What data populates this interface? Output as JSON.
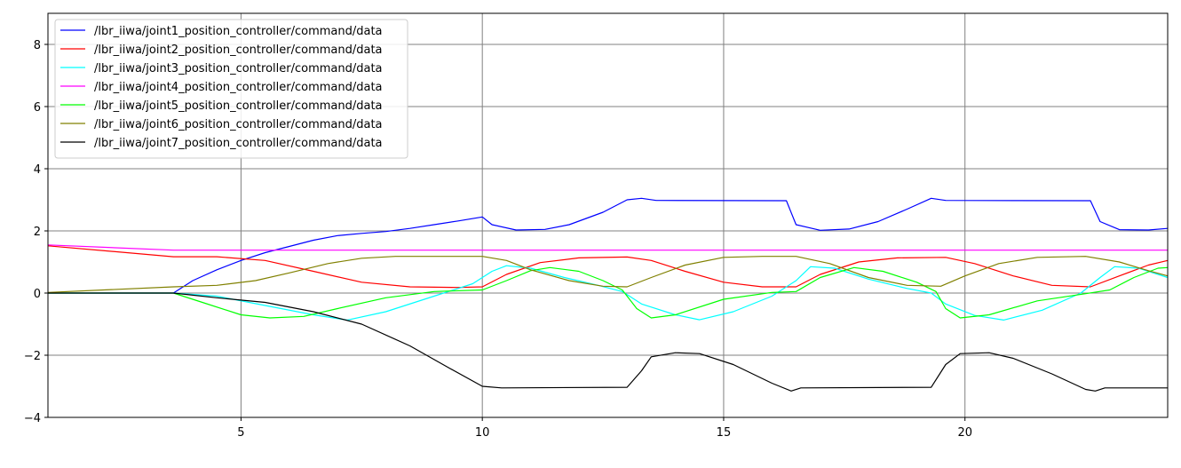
{
  "chart_data": {
    "type": "line",
    "title": "",
    "xlabel": "",
    "ylabel": "",
    "xlim": [
      1,
      24.2
    ],
    "ylim": [
      -4,
      9
    ],
    "xticks": [
      5,
      10,
      15,
      20
    ],
    "yticks": [
      -4,
      -2,
      0,
      2,
      4,
      6,
      8
    ],
    "grid": true,
    "legend_position": "top-left",
    "series": [
      {
        "name": "/lbr_iiwa/joint1_position_controller/command/data",
        "color": "#0000ff",
        "points": [
          [
            1,
            0
          ],
          [
            3.6,
            0
          ],
          [
            4,
            0.4
          ],
          [
            4.5,
            0.75
          ],
          [
            5,
            1.05
          ],
          [
            5.5,
            1.3
          ],
          [
            6,
            1.5
          ],
          [
            6.5,
            1.7
          ],
          [
            7,
            1.85
          ],
          [
            7.5,
            1.92
          ],
          [
            8,
            1.98
          ],
          [
            8.5,
            2.08
          ],
          [
            9,
            2.2
          ],
          [
            9.5,
            2.32
          ],
          [
            10,
            2.45
          ],
          [
            10.2,
            2.2
          ],
          [
            10.7,
            2.03
          ],
          [
            11.3,
            2.05
          ],
          [
            11.8,
            2.2
          ],
          [
            12.5,
            2.6
          ],
          [
            13,
            3.0
          ],
          [
            13.3,
            3.05
          ],
          [
            13.6,
            2.98
          ],
          [
            16.3,
            2.97
          ],
          [
            16.5,
            2.2
          ],
          [
            17,
            2.02
          ],
          [
            17.6,
            2.06
          ],
          [
            18.2,
            2.3
          ],
          [
            18.8,
            2.7
          ],
          [
            19.3,
            3.05
          ],
          [
            19.6,
            2.98
          ],
          [
            22.6,
            2.97
          ],
          [
            22.8,
            2.3
          ],
          [
            23.2,
            2.04
          ],
          [
            23.8,
            2.03
          ],
          [
            24.2,
            2.08
          ]
        ]
      },
      {
        "name": "/lbr_iiwa/joint2_position_controller/command/data",
        "color": "#ff0000",
        "points": [
          [
            1,
            1.52
          ],
          [
            3.6,
            1.17
          ],
          [
            4.5,
            1.17
          ],
          [
            5.5,
            1.05
          ],
          [
            6.5,
            0.7
          ],
          [
            7.5,
            0.35
          ],
          [
            8.5,
            0.2
          ],
          [
            9.5,
            0.18
          ],
          [
            10,
            0.2
          ],
          [
            10.5,
            0.6
          ],
          [
            11.2,
            0.98
          ],
          [
            12,
            1.13
          ],
          [
            13,
            1.16
          ],
          [
            13.5,
            1.05
          ],
          [
            14.2,
            0.7
          ],
          [
            15,
            0.35
          ],
          [
            15.8,
            0.2
          ],
          [
            16.5,
            0.2
          ],
          [
            17,
            0.6
          ],
          [
            17.8,
            1.0
          ],
          [
            18.6,
            1.13
          ],
          [
            19.6,
            1.15
          ],
          [
            20.2,
            0.95
          ],
          [
            21,
            0.55
          ],
          [
            21.8,
            0.25
          ],
          [
            22.6,
            0.2
          ],
          [
            23.2,
            0.55
          ],
          [
            23.8,
            0.9
          ],
          [
            24.2,
            1.05
          ]
        ]
      },
      {
        "name": "/lbr_iiwa/joint3_position_controller/command/data",
        "color": "#00ffff",
        "points": [
          [
            1,
            0
          ],
          [
            3.6,
            0
          ],
          [
            4.5,
            -0.1
          ],
          [
            5.5,
            -0.4
          ],
          [
            6.5,
            -0.7
          ],
          [
            7.2,
            -0.87
          ],
          [
            8,
            -0.6
          ],
          [
            9,
            -0.1
          ],
          [
            9.8,
            0.3
          ],
          [
            10.2,
            0.7
          ],
          [
            10.5,
            0.88
          ],
          [
            11,
            0.8
          ],
          [
            11.7,
            0.5
          ],
          [
            12.4,
            0.25
          ],
          [
            12.9,
            0.05
          ],
          [
            13.3,
            -0.35
          ],
          [
            14,
            -0.7
          ],
          [
            14.5,
            -0.86
          ],
          [
            15.2,
            -0.6
          ],
          [
            16,
            -0.1
          ],
          [
            16.5,
            0.4
          ],
          [
            16.8,
            0.85
          ],
          [
            17.3,
            0.8
          ],
          [
            18,
            0.45
          ],
          [
            18.8,
            0.15
          ],
          [
            19.3,
            0.0
          ],
          [
            19.6,
            -0.35
          ],
          [
            20.2,
            -0.72
          ],
          [
            20.8,
            -0.87
          ],
          [
            21.6,
            -0.55
          ],
          [
            22.4,
            0.0
          ],
          [
            22.8,
            0.5
          ],
          [
            23.1,
            0.85
          ],
          [
            23.6,
            0.8
          ],
          [
            24.2,
            0.5
          ]
        ]
      },
      {
        "name": "/lbr_iiwa/joint4_position_controller/command/data",
        "color": "#ff00ff",
        "points": [
          [
            1,
            1.55
          ],
          [
            3.6,
            1.38
          ],
          [
            24.2,
            1.38
          ]
        ]
      },
      {
        "name": "/lbr_iiwa/joint5_position_controller/command/data",
        "color": "#00ff00",
        "points": [
          [
            1,
            0
          ],
          [
            3.6,
            0
          ],
          [
            4.2,
            -0.3
          ],
          [
            5,
            -0.7
          ],
          [
            5.6,
            -0.8
          ],
          [
            6.3,
            -0.75
          ],
          [
            7,
            -0.5
          ],
          [
            8,
            -0.15
          ],
          [
            9,
            0.05
          ],
          [
            10,
            0.1
          ],
          [
            10.5,
            0.4
          ],
          [
            11,
            0.72
          ],
          [
            11.4,
            0.82
          ],
          [
            12,
            0.7
          ],
          [
            12.5,
            0.4
          ],
          [
            12.9,
            0.1
          ],
          [
            13.2,
            -0.5
          ],
          [
            13.5,
            -0.8
          ],
          [
            14,
            -0.7
          ],
          [
            15,
            -0.2
          ],
          [
            16,
            0.02
          ],
          [
            16.5,
            0.05
          ],
          [
            17,
            0.5
          ],
          [
            17.7,
            0.82
          ],
          [
            18.3,
            0.7
          ],
          [
            19,
            0.35
          ],
          [
            19.4,
            0.05
          ],
          [
            19.6,
            -0.5
          ],
          [
            19.9,
            -0.8
          ],
          [
            20.5,
            -0.7
          ],
          [
            21.5,
            -0.25
          ],
          [
            22.5,
            -0.02
          ],
          [
            23,
            0.1
          ],
          [
            23.5,
            0.5
          ],
          [
            24,
            0.8
          ],
          [
            24.2,
            0.82
          ]
        ]
      },
      {
        "name": "/lbr_iiwa/joint6_position_controller/command/data",
        "color": "#808000",
        "points": [
          [
            1,
            0.02
          ],
          [
            3.6,
            0.2
          ],
          [
            4.5,
            0.25
          ],
          [
            5.3,
            0.4
          ],
          [
            6,
            0.65
          ],
          [
            6.8,
            0.95
          ],
          [
            7.5,
            1.12
          ],
          [
            8.2,
            1.18
          ],
          [
            10,
            1.18
          ],
          [
            10.5,
            1.05
          ],
          [
            11,
            0.75
          ],
          [
            11.8,
            0.4
          ],
          [
            12.5,
            0.22
          ],
          [
            13,
            0.2
          ],
          [
            13.5,
            0.5
          ],
          [
            14.2,
            0.9
          ],
          [
            15,
            1.15
          ],
          [
            15.8,
            1.18
          ],
          [
            16.5,
            1.18
          ],
          [
            17.2,
            0.95
          ],
          [
            18,
            0.5
          ],
          [
            18.8,
            0.25
          ],
          [
            19.5,
            0.22
          ],
          [
            20,
            0.55
          ],
          [
            20.7,
            0.95
          ],
          [
            21.5,
            1.15
          ],
          [
            22.5,
            1.18
          ],
          [
            23.2,
            1.0
          ],
          [
            23.8,
            0.72
          ],
          [
            24.2,
            0.55
          ]
        ]
      },
      {
        "name": "/lbr_iiwa/joint7_position_controller/command/data",
        "color": "#000000",
        "points": [
          [
            1,
            0
          ],
          [
            3.6,
            0
          ],
          [
            4.5,
            -0.15
          ],
          [
            5.5,
            -0.3
          ],
          [
            6.5,
            -0.6
          ],
          [
            7.5,
            -1.0
          ],
          [
            8.5,
            -1.7
          ],
          [
            9.3,
            -2.4
          ],
          [
            10,
            -3.0
          ],
          [
            10.4,
            -3.05
          ],
          [
            13,
            -3.03
          ],
          [
            13.3,
            -2.5
          ],
          [
            13.5,
            -2.05
          ],
          [
            14,
            -1.92
          ],
          [
            14.5,
            -1.95
          ],
          [
            15.2,
            -2.3
          ],
          [
            16,
            -2.9
          ],
          [
            16.4,
            -3.15
          ],
          [
            16.6,
            -3.05
          ],
          [
            19.3,
            -3.03
          ],
          [
            19.6,
            -2.3
          ],
          [
            19.9,
            -1.95
          ],
          [
            20.5,
            -1.92
          ],
          [
            21,
            -2.1
          ],
          [
            21.8,
            -2.6
          ],
          [
            22.5,
            -3.1
          ],
          [
            22.7,
            -3.15
          ],
          [
            22.9,
            -3.05
          ],
          [
            24.2,
            -3.05
          ]
        ]
      }
    ]
  }
}
